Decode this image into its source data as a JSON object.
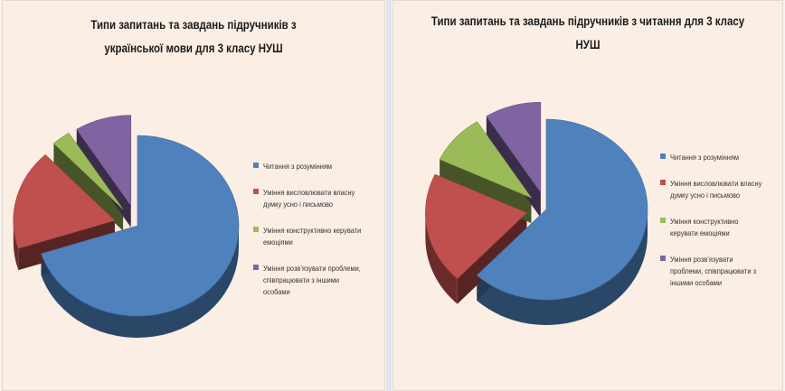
{
  "colors": {
    "blue": "#4f81bd",
    "red": "#c0504d",
    "green": "#9bbb59",
    "purple": "#8064a2"
  },
  "chart_data": [
    {
      "type": "pie",
      "title": "Типи запитань та завдань підручників з української мови для 3 класу НУШ",
      "categories": [
        "Читання з розумінням",
        "Уміння висловлювати власну думку усно і письмово",
        "Уміння конструктивно керувати емоціями",
        "Уміння розв’язувати проблеми, співпрацювати з іншими особами"
      ],
      "values": [
        70,
        18,
        3,
        9
      ],
      "legend": "right",
      "style": "3d-exploded"
    },
    {
      "type": "pie",
      "title": "Типи запитань та завдань підручників з читання для 3 класу НУШ",
      "categories": [
        "Читання з розумінням",
        "Уміння висловлювати власну думку усно і письмово",
        "Уміння конструктивно керувати емоціями",
        "Уміння розв’язувати проблеми, співпрацювати з іншими особами"
      ],
      "values": [
        62,
        20,
        9,
        9
      ],
      "legend": "right",
      "style": "3d-exploded"
    }
  ]
}
